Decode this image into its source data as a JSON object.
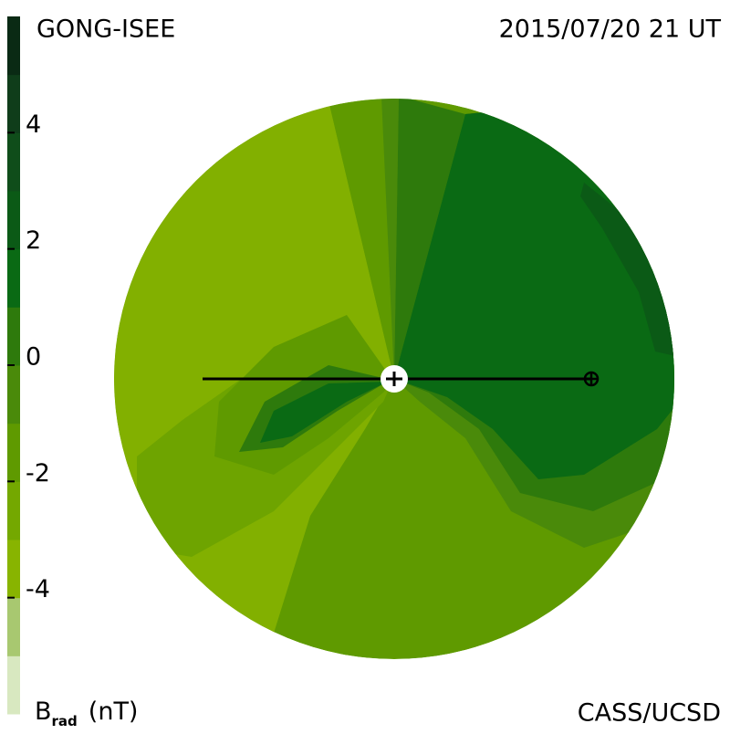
{
  "header": {
    "source": "GONG-ISEE",
    "date": "2015/07/20 21 UT"
  },
  "colorbar": {
    "ylim": [
      -6,
      6
    ],
    "yticks": [
      4,
      2,
      0,
      -2,
      -4
    ],
    "colors": [
      "#d8e8c0",
      "#a8c870",
      "#88b400",
      "#74a800",
      "#5f9a00",
      "#4a8a0a",
      "#2e7a0c",
      "#0a6a14",
      "#0b5a16",
      "#0f4d1a",
      "#0f3d1a",
      "#0a2a14"
    ],
    "label": {
      "symbol": "B",
      "subscript": "rad",
      "unit": "(nT)"
    }
  },
  "footer": {
    "credit": "CASS/UCSD"
  }
}
